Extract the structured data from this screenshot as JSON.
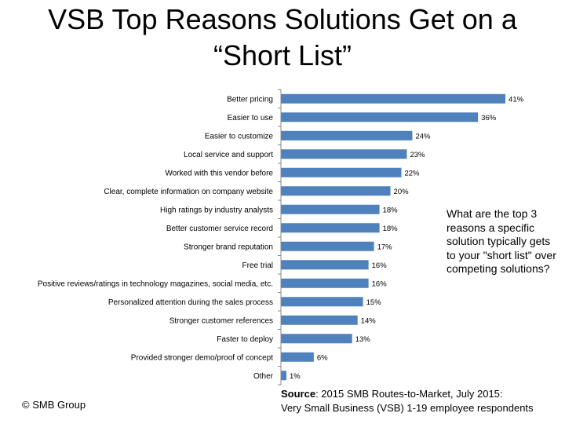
{
  "title_line1": "VSB Top Reasons Solutions Get on a",
  "title_line2": "“Short List”",
  "question": "What are the top 3 reasons a specific solution typically gets to your \"short list\" over competing solutions?",
  "copyright": "© SMB Group",
  "source": {
    "label": "Source",
    "line1": ": 2015 SMB Routes-to-Market, July 2015:",
    "line2": "Very Small Business (VSB) 1-19 employee respondents"
  },
  "chart_data": {
    "type": "bar",
    "orientation": "horizontal",
    "categories": [
      "Better pricing",
      "Easier to use",
      "Easier to customize",
      "Local service and support",
      "Worked with this vendor before",
      "Clear, complete information on company website",
      "High ratings by industry analysts",
      "Better customer service record",
      "Stronger brand reputation",
      "Free trial",
      "Positive reviews/ratings in technology magazines, social media, etc.",
      "Personalized attention during the sales process",
      "Stronger customer references",
      "Faster to deploy",
      "Provided stronger demo/proof of concept",
      "Other"
    ],
    "values": [
      41,
      36,
      24,
      23,
      22,
      20,
      18,
      18,
      17,
      16,
      16,
      15,
      14,
      13,
      6,
      1
    ],
    "value_labels": [
      "41%",
      "36%",
      "24%",
      "23%",
      "22%",
      "20%",
      "18%",
      "18%",
      "17%",
      "16%",
      "16%",
      "15%",
      "14%",
      "13%",
      "6%",
      "1%"
    ],
    "xlim": [
      0,
      43
    ],
    "bar_color": "#4f81bd",
    "grid": false
  }
}
